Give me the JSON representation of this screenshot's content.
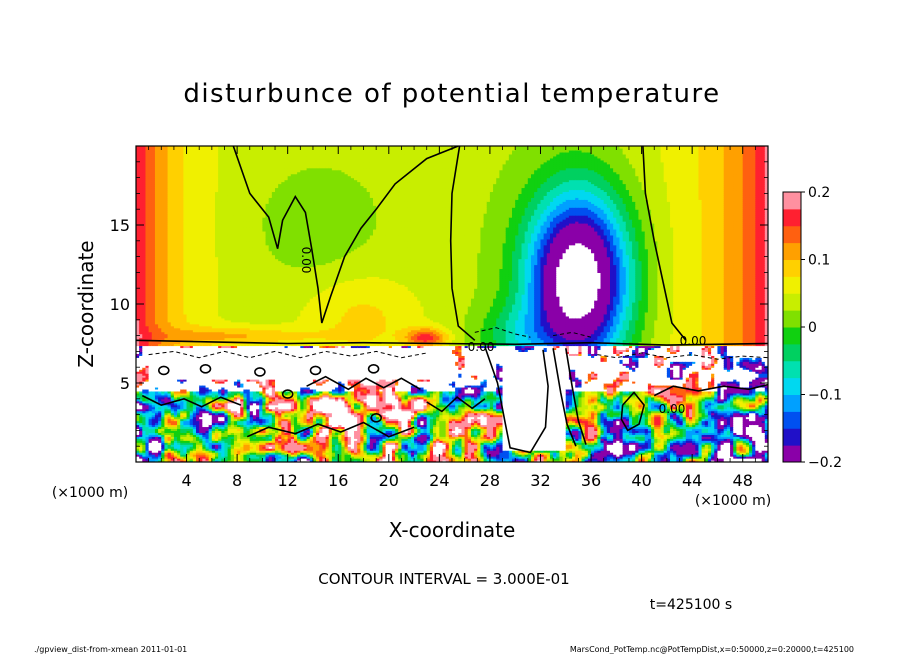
{
  "chart_data": {
    "type": "heatmap",
    "title": "disturbunce of potential temperature",
    "xlabel": "X-coordinate",
    "ylabel": "Z-coordinate",
    "x_unit_left": "(×1000 m)",
    "x_unit_right": "(×1000 m)",
    "xlim": [
      0,
      50
    ],
    "ylim": [
      0,
      20
    ],
    "x_ticks": [
      4,
      8,
      12,
      16,
      20,
      24,
      28,
      32,
      36,
      40,
      44,
      48
    ],
    "y_ticks": [
      5,
      10,
      15
    ],
    "colorbar": {
      "range": [
        -0.2,
        0.2
      ],
      "tick_labels": [
        "0.2",
        "0.1",
        "0",
        "−0.1",
        "−0.2"
      ],
      "tick_values": [
        0.2,
        0.1,
        0,
        -0.1,
        -0.2
      ],
      "colors": [
        "#8a00a8",
        "#2010c8",
        "#0050f0",
        "#00a0ff",
        "#00d8f0",
        "#00e0b0",
        "#00d060",
        "#10d010",
        "#80e000",
        "#c8ee00",
        "#f0f000",
        "#ffd000",
        "#ffa000",
        "#ff6010",
        "#ff2030",
        "#ff90a0"
      ]
    },
    "contour_labels": [
      "0.00",
      "0.00",
      "0.00",
      "0.00"
    ],
    "contour_interval": "CONTOUR INTERVAL = 3.000E-01",
    "time": "t=425100 s"
  },
  "footer": {
    "left": "./gpview_dist-from-xmean 2011-01-01",
    "right": "MarsCond_PotTemp.nc@PotTempDist,x=0:50000,z=0:20000,t=425100"
  }
}
